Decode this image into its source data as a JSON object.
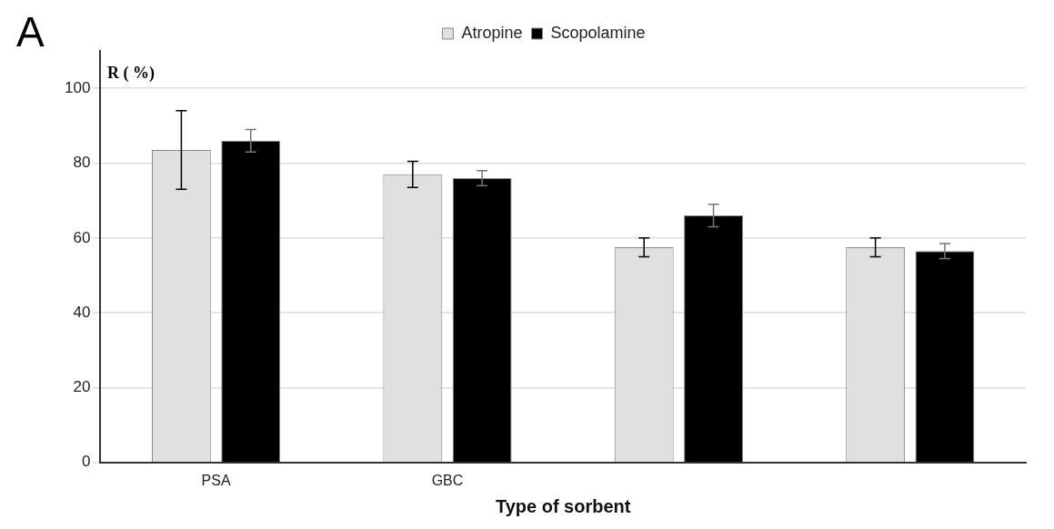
{
  "chart_data": {
    "type": "bar",
    "xlabel": "Type of sorbent",
    "ylabel": "R ( %)",
    "annotations": [
      "A"
    ],
    "categories": [
      "PSA",
      "GBC",
      null,
      null
    ],
    "series": [
      {
        "name": "Atropine",
        "color": "#e0e0e0",
        "values": [
          83.5,
          77,
          57.5,
          57.5
        ],
        "errors": [
          10.5,
          3.5,
          2.5,
          2.5
        ]
      },
      {
        "name": "Scopolamine",
        "color": "#000000",
        "values": [
          86,
          76,
          66,
          56.5
        ],
        "errors": [
          3,
          2,
          3,
          2
        ]
      }
    ],
    "ylim": [
      0,
      110
    ],
    "yticks": [
      0,
      20,
      40,
      60,
      80,
      100
    ],
    "grid": "y",
    "legend": "top"
  }
}
